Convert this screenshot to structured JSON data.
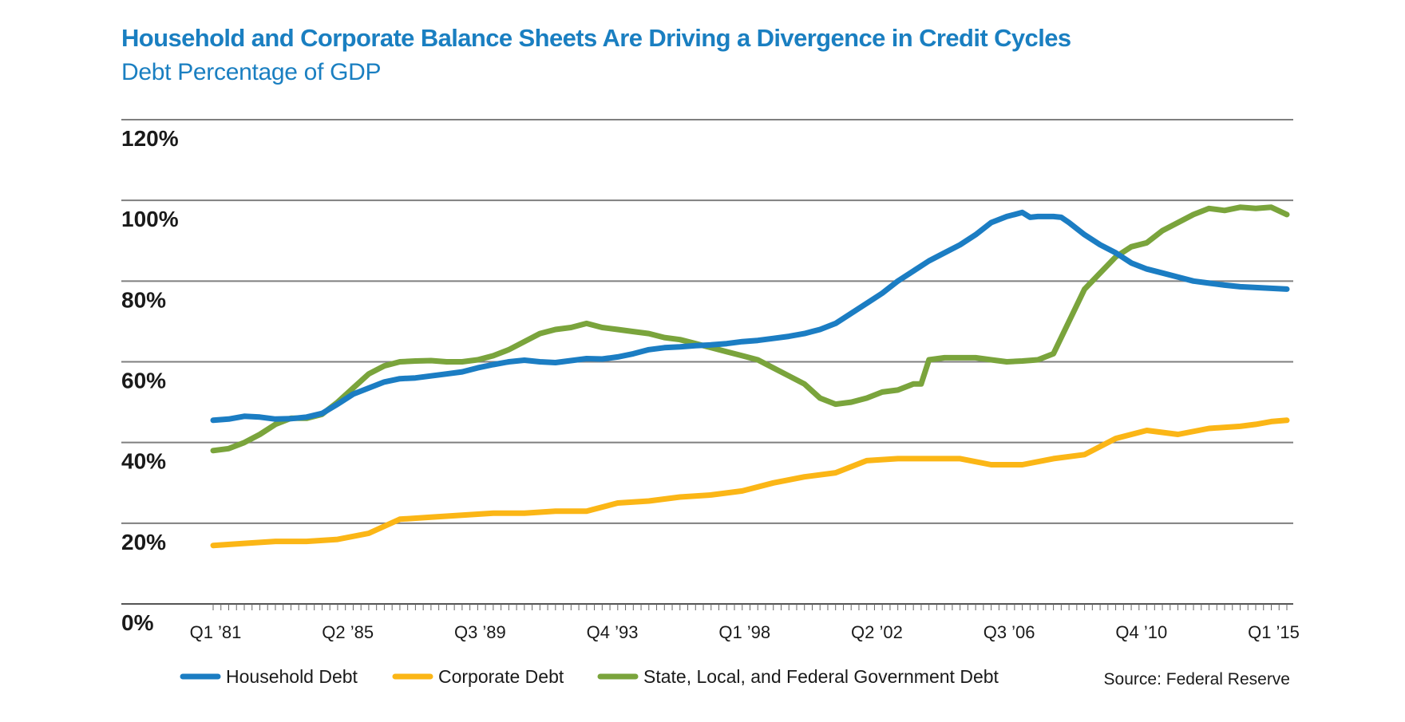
{
  "chart_data": {
    "type": "line",
    "title": "Household and Corporate Balance Sheets Are Driving a Divergence in Credit Cycles",
    "subtitle": "Debt Percentage of GDP",
    "ylim": [
      0,
      120
    ],
    "yticks": [
      "0%",
      "20%",
      "40%",
      "60%",
      "80%",
      "100%",
      "120%"
    ],
    "xlim": [
      1981.0,
      2015.5
    ],
    "xticks": [
      {
        "label": "Q1 ’81",
        "x": 1981.0
      },
      {
        "label": "Q2 ’85",
        "x": 1985.25
      },
      {
        "label": "Q3 ’89",
        "x": 1989.5
      },
      {
        "label": "Q4 ’93",
        "x": 1993.75
      },
      {
        "label": "Q1 ’98",
        "x": 1998.0
      },
      {
        "label": "Q2 ’02",
        "x": 2002.25
      },
      {
        "label": "Q3 ’06",
        "x": 2006.5
      },
      {
        "label": "Q4 ’10",
        "x": 2010.75
      },
      {
        "label": "Q1 ’15",
        "x": 2015.0
      }
    ],
    "grid": true,
    "legend_position": "bottom",
    "series": [
      {
        "name": "Household Debt",
        "color": "#1b7dc3",
        "x": [
          1981.0,
          1981.5,
          1982.0,
          1982.5,
          1983.0,
          1983.5,
          1984.0,
          1984.5,
          1985.0,
          1985.5,
          1986.0,
          1986.5,
          1987.0,
          1987.5,
          1988.0,
          1988.5,
          1989.0,
          1989.5,
          1990.0,
          1990.5,
          1991.0,
          1991.5,
          1992.0,
          1992.5,
          1993.0,
          1993.5,
          1994.0,
          1994.5,
          1995.0,
          1995.5,
          1996.0,
          1996.5,
          1997.0,
          1997.5,
          1998.0,
          1998.5,
          1999.0,
          1999.5,
          2000.0,
          2000.5,
          2001.0,
          2001.5,
          2002.0,
          2002.5,
          2003.0,
          2003.5,
          2004.0,
          2004.5,
          2005.0,
          2005.5,
          2006.0,
          2006.5,
          2007.0,
          2007.25,
          2007.5,
          2007.75,
          2008.0,
          2008.25,
          2008.5,
          2009.0,
          2009.5,
          2010.0,
          2010.5,
          2011.0,
          2011.5,
          2012.0,
          2012.5,
          2013.0,
          2013.5,
          2014.0,
          2014.5,
          2015.0,
          2015.5
        ],
        "values": [
          45.5,
          45.8,
          46.5,
          46.3,
          45.8,
          45.9,
          46.3,
          47.2,
          49.5,
          52.0,
          53.5,
          55.0,
          55.8,
          56.0,
          56.5,
          57.0,
          57.5,
          58.5,
          59.3,
          60.0,
          60.4,
          60.0,
          59.8,
          60.3,
          60.8,
          60.7,
          61.2,
          62.0,
          63.0,
          63.5,
          63.7,
          64.0,
          64.2,
          64.5,
          65.0,
          65.3,
          65.8,
          66.3,
          67.0,
          68.0,
          69.5,
          72.0,
          74.5,
          77.0,
          80.0,
          82.5,
          85.0,
          87.0,
          89.0,
          91.5,
          94.5,
          96.0,
          97.0,
          95.8,
          96.0,
          96.0,
          96.0,
          95.8,
          94.5,
          91.5,
          89.0,
          87.0,
          84.5,
          83.0,
          82.0,
          81.0,
          80.0,
          79.5,
          79.0,
          78.6,
          78.4,
          78.2,
          78.0
        ]
      },
      {
        "name": "Corporate Debt",
        "color": "#fbb616",
        "x": [
          1981.0,
          1982.0,
          1983.0,
          1984.0,
          1985.0,
          1986.0,
          1987.0,
          1988.0,
          1989.0,
          1990.0,
          1991.0,
          1992.0,
          1993.0,
          1994.0,
          1995.0,
          1996.0,
          1997.0,
          1998.0,
          1999.0,
          2000.0,
          2001.0,
          2002.0,
          2003.0,
          2004.0,
          2005.0,
          2006.0,
          2007.0,
          2008.0,
          2009.0,
          2010.0,
          2011.0,
          2012.0,
          2013.0,
          2014.0,
          2014.5,
          2015.0,
          2015.5
        ],
        "values": [
          14.5,
          15.0,
          15.5,
          15.5,
          16.0,
          17.5,
          21.0,
          21.5,
          22.0,
          22.5,
          22.5,
          23.0,
          23.0,
          25.0,
          25.5,
          26.5,
          27.0,
          28.0,
          30.0,
          31.5,
          32.5,
          35.5,
          36.0,
          36.0,
          36.0,
          34.5,
          34.5,
          36.0,
          37.0,
          41.0,
          43.0,
          42.0,
          43.5,
          44.0,
          44.5,
          45.2,
          45.5
        ]
      },
      {
        "name": "State, Local, and Federal Government Debt",
        "color": "#7aa43c",
        "x": [
          1981.0,
          1981.5,
          1982.0,
          1982.5,
          1983.0,
          1983.5,
          1984.0,
          1984.5,
          1985.0,
          1985.5,
          1986.0,
          1986.5,
          1987.0,
          1987.5,
          1988.0,
          1988.5,
          1989.0,
          1989.5,
          1990.0,
          1990.5,
          1991.0,
          1991.5,
          1992.0,
          1992.5,
          1993.0,
          1993.5,
          1994.0,
          1994.5,
          1995.0,
          1995.5,
          1996.0,
          1996.5,
          1997.0,
          1997.5,
          1998.0,
          1998.5,
          1999.0,
          1999.5,
          2000.0,
          2000.5,
          2001.0,
          2001.5,
          2002.0,
          2002.5,
          2003.0,
          2003.5,
          2003.75,
          2004.0,
          2004.5,
          2005.0,
          2005.5,
          2006.0,
          2006.5,
          2007.0,
          2007.5,
          2008.0,
          2008.5,
          2009.0,
          2009.5,
          2010.0,
          2010.5,
          2011.0,
          2011.5,
          2012.0,
          2012.5,
          2013.0,
          2013.5,
          2014.0,
          2014.5,
          2015.0,
          2015.5
        ],
        "values": [
          38.0,
          38.5,
          40.0,
          42.0,
          44.5,
          46.0,
          46.0,
          47.0,
          50.0,
          53.5,
          57.0,
          59.0,
          60.0,
          60.2,
          60.3,
          60.0,
          60.0,
          60.5,
          61.5,
          63.0,
          65.0,
          67.0,
          68.0,
          68.5,
          69.5,
          68.5,
          68.0,
          67.5,
          67.0,
          66.0,
          65.5,
          64.5,
          63.5,
          62.5,
          61.5,
          60.5,
          58.5,
          56.5,
          54.5,
          51.0,
          49.5,
          50.0,
          51.0,
          52.5,
          53.0,
          54.5,
          54.5,
          60.5,
          61.0,
          61.0,
          61.0,
          60.5,
          60.0,
          60.2,
          60.5,
          62.0,
          70.0,
          78.0,
          82.0,
          86.0,
          88.5,
          89.5,
          92.5,
          94.5,
          96.5,
          98.0,
          97.5,
          98.3,
          98.0,
          98.3,
          96.5
        ]
      }
    ]
  },
  "source": "Source: Federal Reserve"
}
